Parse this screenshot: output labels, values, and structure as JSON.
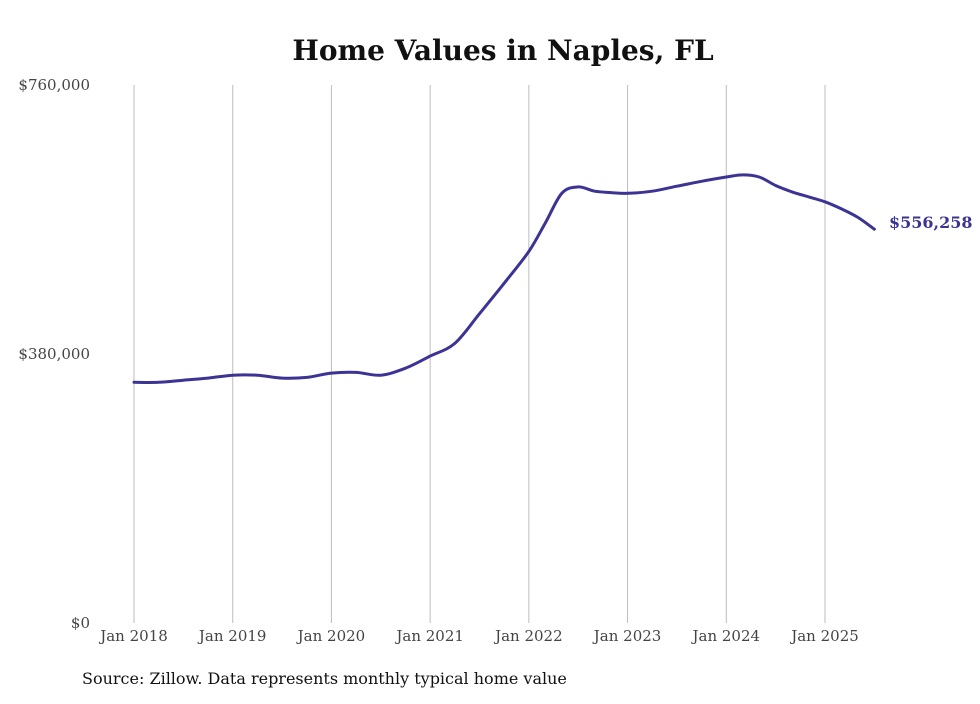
{
  "chart_data": {
    "type": "line",
    "title": "Home Values in Naples, FL",
    "source": "Source: Zillow. Data represents monthly typical home value",
    "ylim": [
      0,
      760000
    ],
    "y_ticks": [
      0,
      380000,
      760000
    ],
    "y_tick_labels": [
      "$0",
      "$380,000",
      "$760,000"
    ],
    "x_ticks": [
      "2018-01",
      "2019-01",
      "2020-01",
      "2021-01",
      "2022-01",
      "2023-01",
      "2024-01",
      "2025-01"
    ],
    "x_tick_labels": [
      "Jan 2018",
      "Jan 2019",
      "Jan 2020",
      "Jan 2021",
      "Jan 2022",
      "Jan 2023",
      "Jan 2024",
      "Jan 2025"
    ],
    "grid": "vertical lines at x ticks",
    "line_color": "#3b3494",
    "end_label": "$556,258",
    "series": [
      {
        "x": [
          "2018-01",
          "2018-04",
          "2018-07",
          "2018-10",
          "2019-01",
          "2019-04",
          "2019-07",
          "2019-10",
          "2020-01",
          "2020-04",
          "2020-07",
          "2020-10",
          "2021-01",
          "2021-04",
          "2021-07",
          "2021-10",
          "2022-01",
          "2022-03",
          "2022-05",
          "2022-07",
          "2022-09",
          "2022-11",
          "2023-01",
          "2023-04",
          "2023-07",
          "2023-10",
          "2024-01",
          "2024-03",
          "2024-05",
          "2024-07",
          "2024-09",
          "2024-11",
          "2025-01",
          "2025-03",
          "2025-05",
          "2025-07"
        ],
        "values": [
          340000,
          340000,
          343000,
          346000,
          350000,
          350000,
          346000,
          347000,
          353000,
          354000,
          350000,
          360000,
          377000,
          395000,
          437000,
          480000,
          525000,
          565000,
          607000,
          616000,
          610000,
          608000,
          607000,
          610000,
          617000,
          624000,
          630000,
          633000,
          630000,
          618000,
          609000,
          602000,
          595000,
          585000,
          573000,
          556258
        ]
      }
    ]
  }
}
